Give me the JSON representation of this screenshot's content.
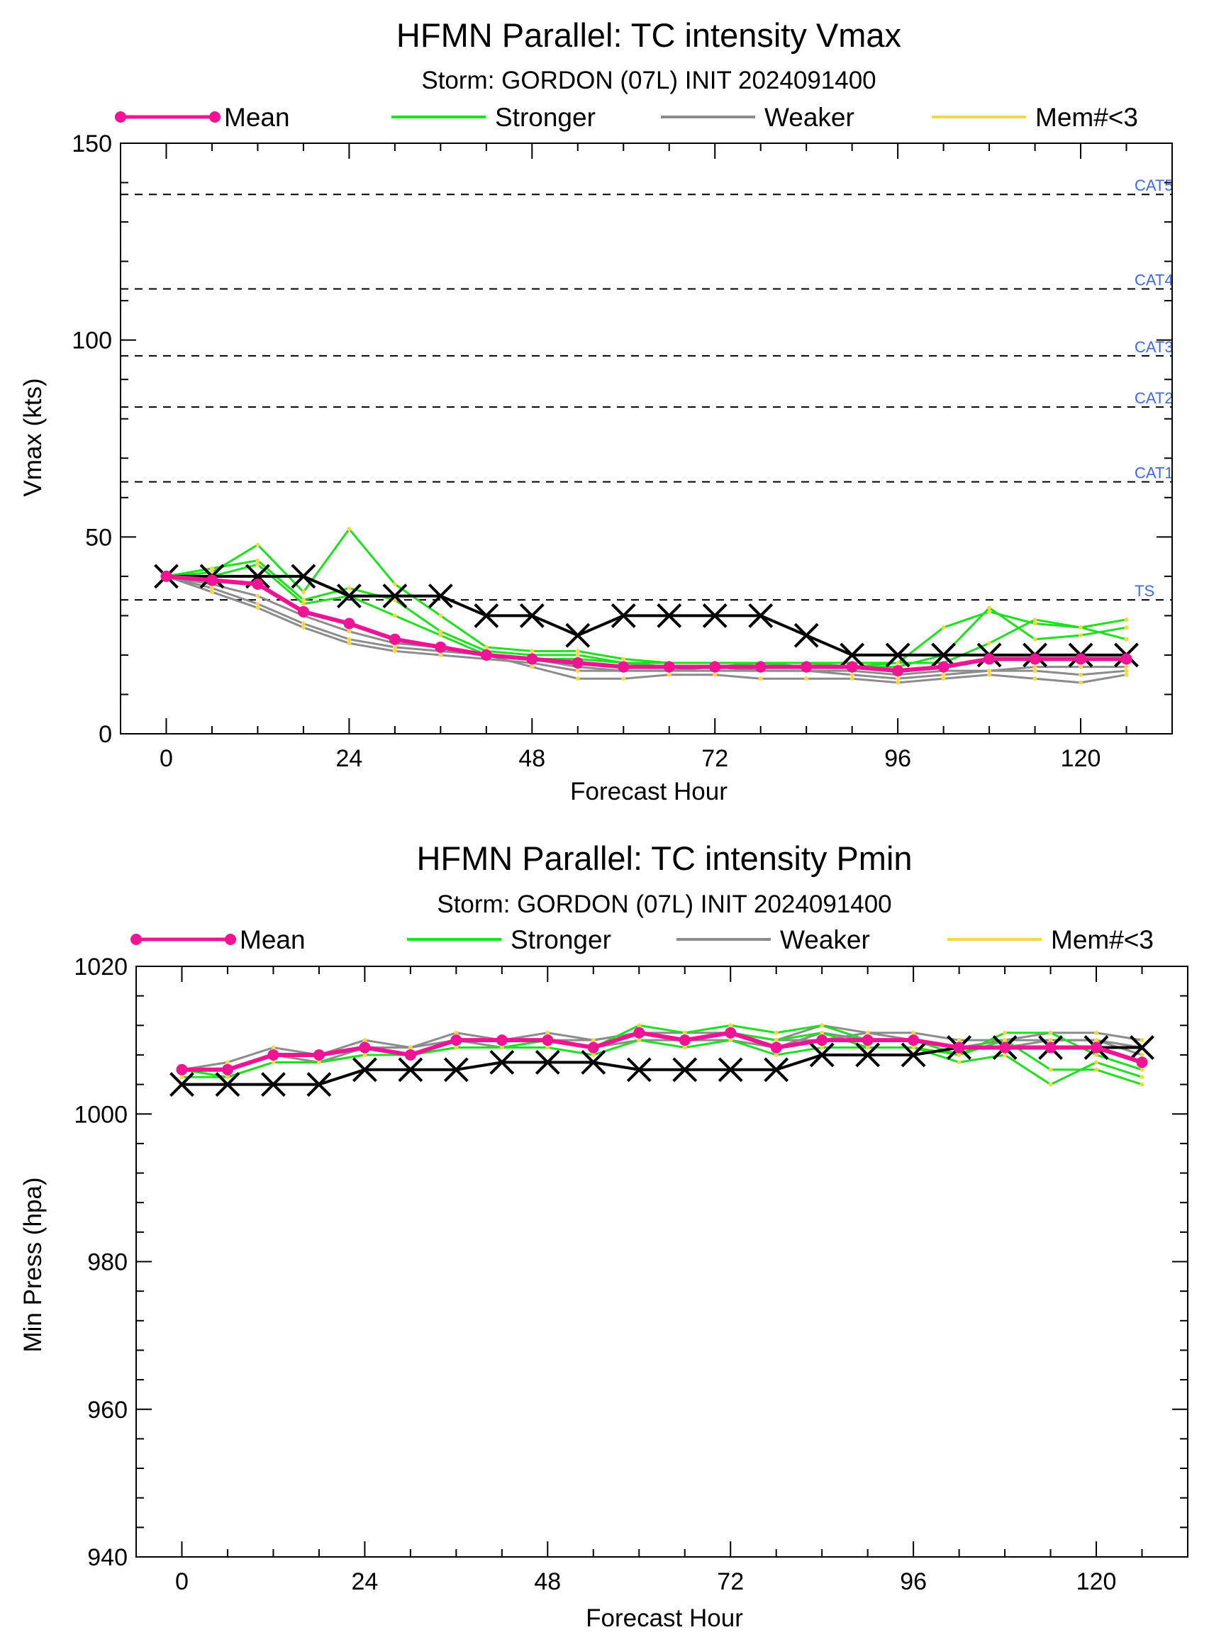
{
  "colors": {
    "mean": "#ee1493",
    "stronger": "#1ee01e",
    "weaker": "#8c8c8c",
    "few_members": "#f5d74a",
    "observed": "#000000",
    "category_text": "#4169e1"
  },
  "chart_data": [
    {
      "type": "line",
      "title": "HFMN Parallel: TC intensity Vmax",
      "subtitle": "Storm: GORDON (07L) INIT 2024091400",
      "xlabel": "Forecast Hour",
      "ylabel": "Vmax (kts)",
      "xlim": [
        -6,
        132
      ],
      "ylim": [
        0,
        150
      ],
      "xticks": [
        0,
        24,
        48,
        72,
        96,
        120
      ],
      "yticks": [
        0,
        50,
        100,
        150
      ],
      "grid": false,
      "legend": {
        "placement": "top",
        "entries": [
          "Mean",
          "Stronger",
          "Weaker",
          "Mem#<3"
        ]
      },
      "thresholds": [
        {
          "label": "TS",
          "value": 34
        },
        {
          "label": "CAT1",
          "value": 64
        },
        {
          "label": "CAT2",
          "value": 83
        },
        {
          "label": "CAT3",
          "value": 96
        },
        {
          "label": "CAT4",
          "value": 113
        },
        {
          "label": "CAT5",
          "value": 137
        }
      ],
      "x": [
        0,
        6,
        12,
        18,
        24,
        30,
        36,
        42,
        48,
        54,
        60,
        66,
        72,
        78,
        84,
        90,
        96,
        102,
        108,
        114,
        120,
        126
      ],
      "series": [
        {
          "name": "Mean",
          "values": [
            40,
            39,
            38,
            31,
            28,
            24,
            22,
            20,
            19,
            18,
            17,
            17,
            17,
            17,
            17,
            17,
            16,
            17,
            19,
            19,
            19,
            19
          ]
        },
        {
          "name": "Observed",
          "values": [
            40,
            40,
            40,
            40,
            35,
            35,
            35,
            30,
            30,
            25,
            30,
            30,
            30,
            30,
            25,
            20,
            20,
            20,
            20,
            20,
            20,
            20
          ]
        }
      ],
      "members_stronger": [
        [
          40,
          41,
          48,
          36,
          52,
          38,
          30,
          22,
          21,
          21,
          19,
          18,
          18,
          18,
          18,
          18,
          18,
          27,
          31,
          28,
          27,
          29
        ],
        [
          40,
          42,
          44,
          34,
          37,
          34,
          26,
          21,
          20,
          20,
          18,
          18,
          18,
          18,
          18,
          17,
          17,
          20,
          32,
          24,
          25,
          27
        ],
        [
          40,
          40,
          43,
          33,
          35,
          30,
          25,
          20,
          19,
          19,
          18,
          17,
          17,
          18,
          17,
          17,
          18,
          18,
          23,
          29,
          27,
          24
        ]
      ],
      "members_weaker": [
        [
          40,
          36,
          32,
          27,
          23,
          21,
          20,
          19,
          18,
          16,
          16,
          16,
          16,
          16,
          16,
          16,
          15,
          16,
          16,
          17,
          17,
          17
        ],
        [
          40,
          37,
          33,
          28,
          24,
          22,
          21,
          20,
          17,
          14,
          14,
          15,
          15,
          14,
          14,
          14,
          13,
          14,
          15,
          14,
          13,
          15
        ],
        [
          40,
          38,
          35,
          30,
          26,
          23,
          22,
          20,
          19,
          17,
          16,
          16,
          17,
          16,
          16,
          15,
          14,
          15,
          16,
          16,
          15,
          16
        ]
      ]
    },
    {
      "type": "line",
      "title": "HFMN Parallel: TC intensity Pmin",
      "subtitle": "Storm: GORDON (07L) INIT 2024091400",
      "xlabel": "Forecast Hour",
      "ylabel": "Min Press (hpa)",
      "xlim": [
        -6,
        132
      ],
      "ylim": [
        940,
        1020
      ],
      "xticks": [
        0,
        24,
        48,
        72,
        96,
        120
      ],
      "yticks": [
        940,
        960,
        980,
        1000,
        1020
      ],
      "grid": false,
      "legend": {
        "placement": "top",
        "entries": [
          "Mean",
          "Stronger",
          "Weaker",
          "Mem#<3"
        ]
      },
      "x": [
        0,
        6,
        12,
        18,
        24,
        30,
        36,
        42,
        48,
        54,
        60,
        66,
        72,
        78,
        84,
        90,
        96,
        102,
        108,
        114,
        120,
        126
      ],
      "series": [
        {
          "name": "Mean",
          "values": [
            1006,
            1006,
            1008,
            1008,
            1009,
            1008,
            1010,
            1010,
            1010,
            1009,
            1011,
            1010,
            1011,
            1009,
            1010,
            1010,
            1010,
            1009,
            1009,
            1009,
            1009,
            1007
          ]
        },
        {
          "name": "Observed",
          "values": [
            1004,
            1004,
            1004,
            1004,
            1006,
            1006,
            1006,
            1007,
            1007,
            1007,
            1006,
            1006,
            1006,
            1006,
            1008,
            1008,
            1008,
            1009,
            1009,
            1009,
            1009,
            1009
          ]
        }
      ],
      "members_stronger": [
        [
          1006,
          1005,
          1007,
          1007,
          1008,
          1008,
          1009,
          1009,
          1009,
          1008,
          1010,
          1009,
          1010,
          1008,
          1009,
          1009,
          1009,
          1007,
          1008,
          1004,
          1007,
          1005
        ],
        [
          1006,
          1006,
          1008,
          1008,
          1009,
          1008,
          1010,
          1010,
          1010,
          1009,
          1012,
          1011,
          1012,
          1011,
          1012,
          1010,
          1010,
          1008,
          1010,
          1006,
          1006,
          1004
        ],
        [
          1005,
          1005,
          1007,
          1007,
          1008,
          1008,
          1009,
          1009,
          1010,
          1009,
          1011,
          1010,
          1011,
          1010,
          1011,
          1009,
          1009,
          1008,
          1011,
          1011,
          1008,
          1006
        ]
      ],
      "members_weaker": [
        [
          1006,
          1007,
          1009,
          1008,
          1010,
          1009,
          1011,
          1010,
          1011,
          1010,
          1011,
          1011,
          1011,
          1010,
          1012,
          1011,
          1011,
          1010,
          1010,
          1011,
          1011,
          1010
        ],
        [
          1006,
          1006,
          1008,
          1007,
          1009,
          1008,
          1010,
          1009,
          1010,
          1009,
          1010,
          1010,
          1010,
          1009,
          1011,
          1010,
          1010,
          1009,
          1009,
          1010,
          1010,
          1009
        ],
        [
          1006,
          1006,
          1008,
          1008,
          1009,
          1009,
          1010,
          1010,
          1010,
          1010,
          1011,
          1010,
          1011,
          1010,
          1010,
          1011,
          1010,
          1009,
          1010,
          1010,
          1010,
          1008
        ]
      ]
    }
  ]
}
